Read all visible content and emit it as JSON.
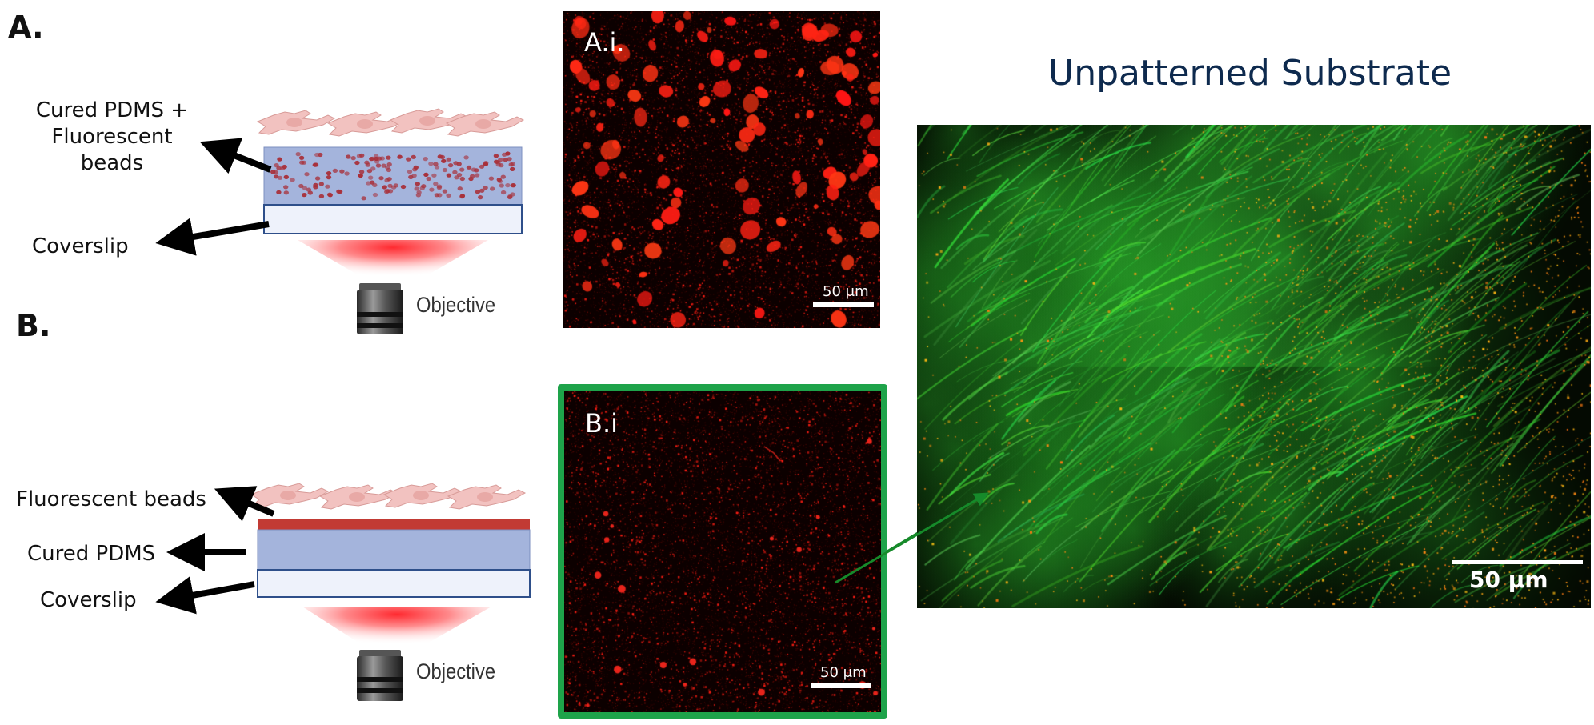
{
  "panel_a": {
    "letter": "A.",
    "label_top_line1": "Cured PDMS +",
    "label_top_line2": "Fluorescent",
    "label_top_line3": "beads",
    "label_bottom": "Coverslip",
    "objective": "Objective"
  },
  "panel_b": {
    "letter": "B.",
    "label_beads": "Fluorescent beads",
    "label_pdms": "Cured PDMS",
    "label_coverslip": "Coverslip",
    "objective": "Objective"
  },
  "micrograph_ai": {
    "label": "A.i.",
    "scale": "50 μm"
  },
  "micrograph_bi": {
    "label": "B.i",
    "scale": "50 μm",
    "frame_color": "#1ea34a"
  },
  "micrograph_large": {
    "title": "Unpatterned Substrate",
    "scale": "50 μm"
  },
  "colors": {
    "pdms": "#a4b4dc",
    "coverslip": "#eef2fb",
    "bead_layer": "#c23a34",
    "beads": "#a8303a",
    "cells": "#f2c2c0",
    "red_signal": "#ff2a1a",
    "green_signal": "#2fd43a",
    "title": "#0e2a4e"
  }
}
